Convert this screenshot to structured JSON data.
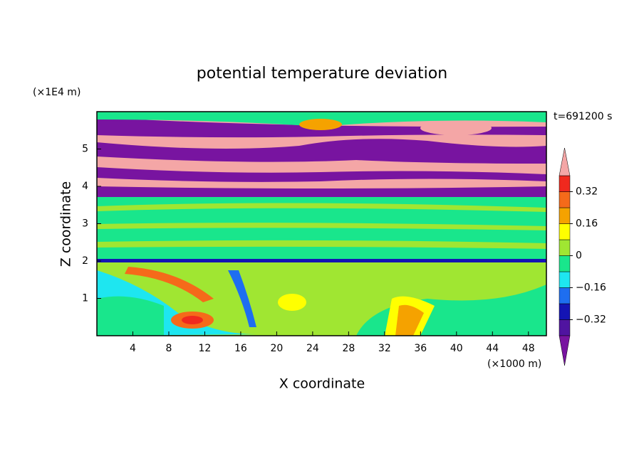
{
  "chart_data": {
    "type": "contour",
    "title": "potential temperature deviation",
    "y_unit": "(×1E4 m)",
    "x_unit": "(×1000 m)",
    "annotation": "t=691200 s",
    "xlabel": "X coordinate",
    "ylabel": "Z coordinate",
    "xlim": [
      0,
      50
    ],
    "xticks": [
      4,
      8,
      12,
      16,
      20,
      24,
      28,
      32,
      36,
      40,
      44,
      48
    ],
    "ylim": [
      0,
      6
    ],
    "yticks": [
      1,
      2,
      3,
      4,
      5
    ],
    "levels": [
      -0.4,
      -0.32,
      -0.24,
      -0.16,
      -0.08,
      0,
      0.08,
      0.16,
      0.24,
      0.32,
      0.4
    ],
    "colors": [
      "#7814a0",
      "#5014a0",
      "#1414b4",
      "#1e6ef0",
      "#1ee6f0",
      "#19e68c",
      "#a0e632",
      "#ffff00",
      "#f5a200",
      "#f56a1a",
      "#f0291e",
      "#f4a6a6"
    ],
    "colorbar_ticks": [
      0.32,
      0.16,
      0,
      {
        "value": -0.16,
        "label": "−0.16"
      },
      {
        "value": -0.32,
        "label": "−0.32"
      }
    ]
  }
}
